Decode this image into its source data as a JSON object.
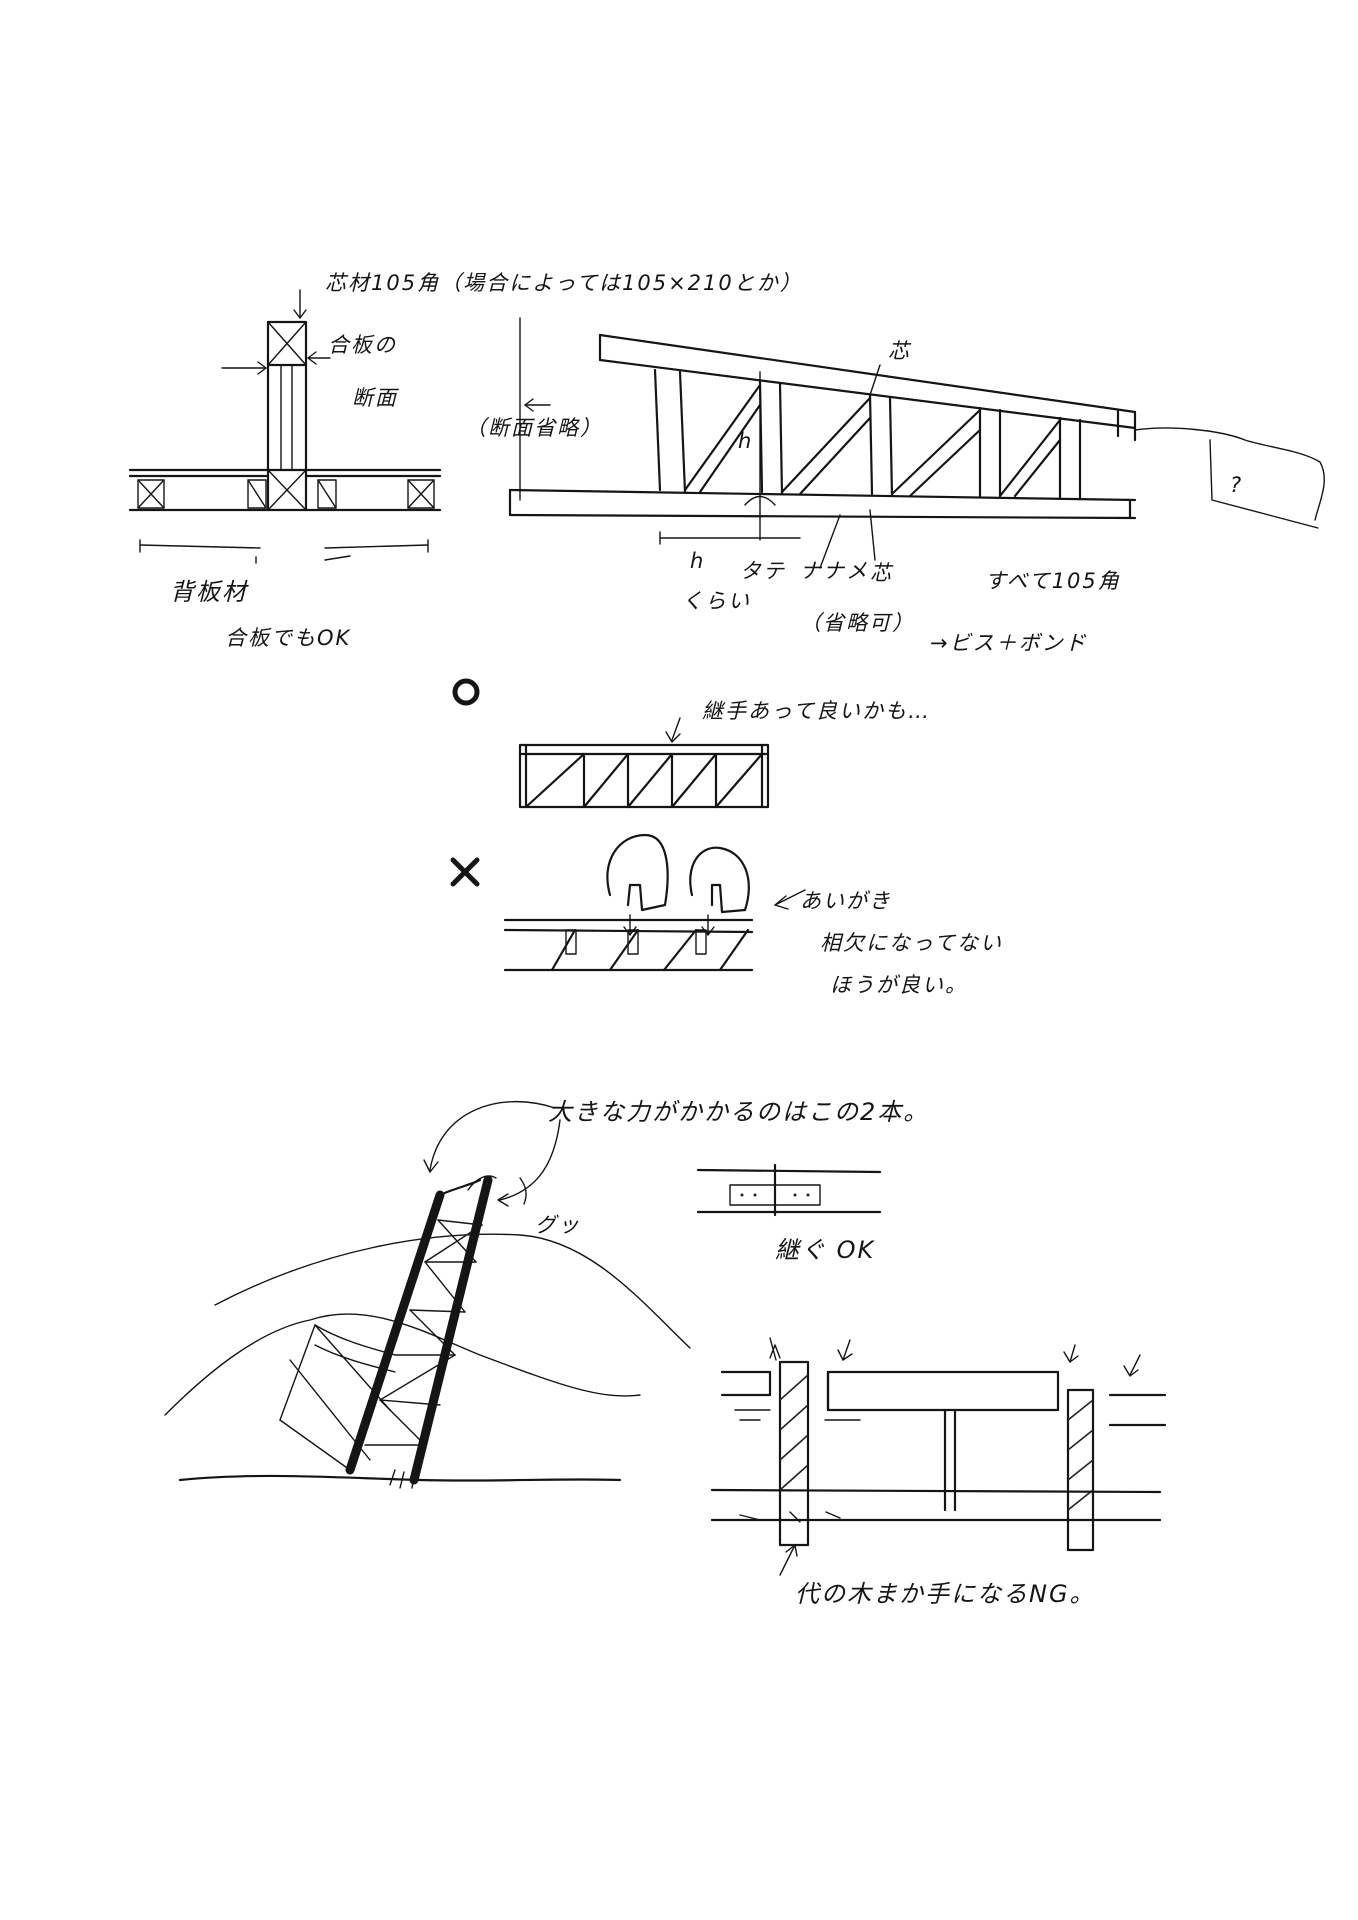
{
  "notes": {
    "core_105": "芯材105角（場合によっては105×210とか）",
    "plywood_thickness": "合板の",
    "plywood_section": "断面",
    "section_omitted": "（断面省略）",
    "core_top": "芯",
    "question": "?",
    "h_label": "h",
    "h_width_1": "h",
    "h_width_2": "くらい",
    "tate": "タテ",
    "naname": "ナナメ",
    "core_bottom": "芯",
    "all_105": "すべて105角",
    "omit_lengthwise": "（省略可）",
    "screw_bond": "→ビス＋ボンド",
    "backboard": "背板材",
    "ply_ok": "合板でもOK",
    "joint_ok_maybe": "継手あって良いかも…",
    "lap_joint_1": "あいがき",
    "lap_joint_2": "相欠になってない",
    "lap_joint_3": "ほうが良い。",
    "big_force": "大きな力がかかるのはこの2本。",
    "gugu": "グッ",
    "joint_ok": "継ぐ OK",
    "ng_note": "代の木まか手になるNG。"
  },
  "marks": {
    "good": "O",
    "bad": "×"
  }
}
